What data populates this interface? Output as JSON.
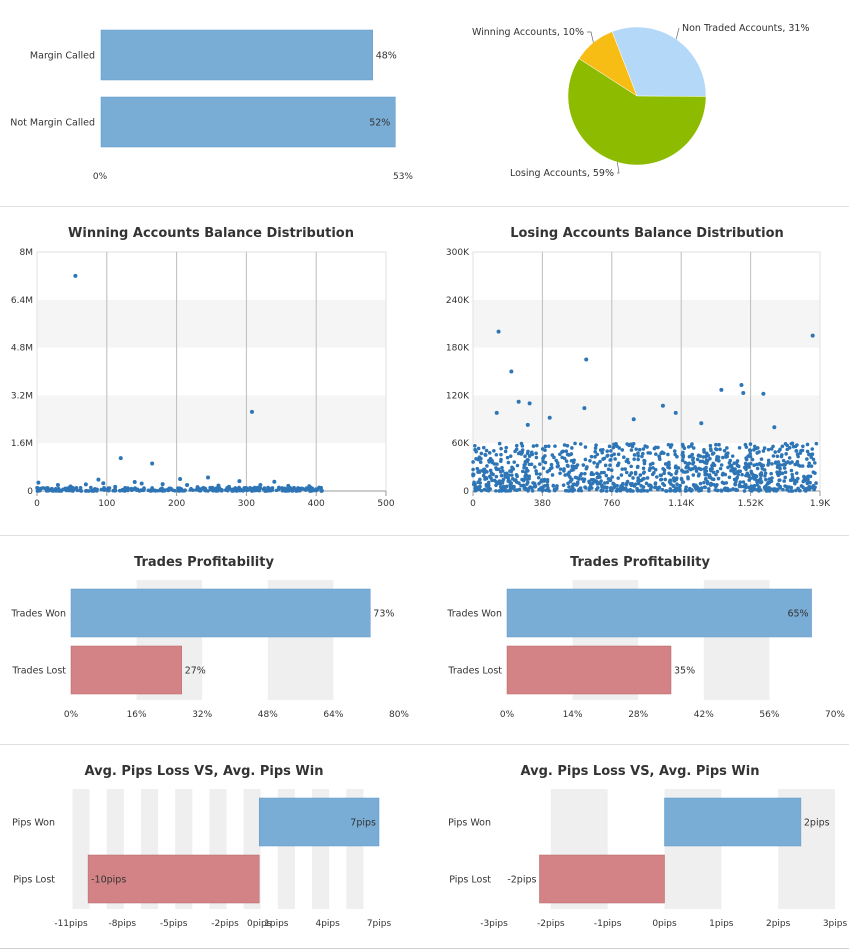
{
  "colors": {
    "blue": "#7aadd6",
    "blue_edge": "#5f97c9",
    "red": "#d38385",
    "red_edge": "#b66567",
    "dot": "#2e75b6",
    "pie_non_traded": "#b3d8f8",
    "pie_losing": "#8cbb00",
    "pie_winning": "#f7bd14",
    "band": "#efefef"
  },
  "chart_data": [
    {
      "type": "bar",
      "orientation": "horizontal",
      "categories": [
        "Margin Called",
        "Not Margin Called"
      ],
      "values": [
        48,
        52
      ],
      "value_labels": [
        "48%",
        "52%"
      ],
      "xlim": [
        0,
        53
      ],
      "tick_labels": [
        "0%",
        "53%"
      ]
    },
    {
      "type": "pie",
      "slices": [
        {
          "label": "Non Traded Accounts, 31%",
          "value": 31,
          "color": "#b3d8f8"
        },
        {
          "label": "Losing Accounts, 59%",
          "value": 59,
          "color": "#8cbb00"
        },
        {
          "label": "Winning Accounts, 10%",
          "value": 10,
          "color": "#f7bd14"
        }
      ]
    },
    {
      "type": "scatter",
      "title": "Winning Accounts Balance Distribution",
      "xlim": [
        0,
        500
      ],
      "ylim": [
        0,
        8000000
      ],
      "x_ticks": [
        "0",
        "100",
        "200",
        "300",
        "400",
        "500"
      ],
      "y_ticks": [
        "0",
        "1.6M",
        "3.2M",
        "4.8M",
        "6.4M",
        "8M"
      ],
      "points": [
        [
          55,
          7200000
        ],
        [
          308,
          2650000
        ],
        [
          120,
          1100000
        ],
        [
          165,
          920000
        ],
        [
          245,
          450000
        ],
        [
          205,
          400000
        ],
        [
          88,
          380000
        ],
        [
          140,
          300000
        ],
        [
          290,
          330000
        ],
        [
          340,
          310000
        ],
        [
          2,
          280000
        ],
        [
          30,
          200000
        ],
        [
          70,
          220000
        ],
        [
          95,
          260000
        ],
        [
          150,
          250000
        ],
        [
          180,
          230000
        ],
        [
          215,
          200000
        ],
        [
          260,
          180000
        ],
        [
          320,
          200000
        ],
        [
          360,
          170000
        ],
        [
          390,
          160000
        ],
        [
          48,
          150000
        ],
        [
          112,
          140000
        ],
        [
          230,
          130000
        ],
        [
          275,
          140000
        ],
        [
          15,
          100000
        ],
        [
          130,
          90000
        ],
        [
          300,
          90000
        ],
        [
          380,
          80000
        ],
        [
          400,
          60000
        ]
      ],
      "dense_band": {
        "x_range": [
          0,
          410
        ],
        "y_range": [
          0,
          120000
        ],
        "count": 320
      }
    },
    {
      "type": "scatter",
      "title": "Losing Accounts Balance Distribution",
      "xlim": [
        0,
        1900
      ],
      "ylim": [
        0,
        300000
      ],
      "x_ticks": [
        "0",
        "380",
        "760",
        "1.14K",
        "1.52K",
        "1.9K"
      ],
      "y_ticks": [
        "0",
        "60K",
        "120K",
        "180K",
        "240K",
        "300K"
      ],
      "points": [
        [
          140,
          200000
        ],
        [
          1860,
          195000
        ],
        [
          620,
          165000
        ],
        [
          210,
          150000
        ],
        [
          1470,
          133000
        ],
        [
          1360,
          127000
        ],
        [
          1590,
          122000
        ],
        [
          250,
          112000
        ],
        [
          1040,
          107000
        ],
        [
          310,
          110000
        ],
        [
          1480,
          123000
        ],
        [
          610,
          104000
        ],
        [
          1110,
          98000
        ],
        [
          130,
          98000
        ],
        [
          1650,
          80000
        ],
        [
          420,
          92000
        ],
        [
          880,
          90000
        ],
        [
          300,
          83000
        ],
        [
          1250,
          85000
        ]
      ],
      "dense_band": {
        "x_range": [
          0,
          1880
        ],
        "y_range": [
          0,
          60000
        ],
        "count": 1100
      }
    },
    {
      "type": "bar",
      "orientation": "horizontal",
      "title": "Trades Profitability",
      "categories": [
        "Trades Won",
        "Trades Lost"
      ],
      "values": [
        73,
        27
      ],
      "value_labels": [
        "73%",
        "27%"
      ],
      "xlim": [
        0,
        80
      ],
      "tick_labels": [
        "0%",
        "16%",
        "32%",
        "48%",
        "64%",
        "80%"
      ]
    },
    {
      "type": "bar",
      "orientation": "horizontal",
      "title": "Trades Profitability",
      "categories": [
        "Trades Won",
        "Trades Lost"
      ],
      "values": [
        65,
        35
      ],
      "value_labels": [
        "65%",
        "35%"
      ],
      "xlim": [
        0,
        70
      ],
      "tick_labels": [
        "0%",
        "14%",
        "28%",
        "42%",
        "56%",
        "70%"
      ]
    },
    {
      "type": "bar",
      "orientation": "horizontal",
      "title": "Avg. Pips Loss VS, Avg. Pips Win",
      "categories": [
        "Pips Won",
        "Pips Lost"
      ],
      "values": [
        7,
        -10
      ],
      "value_labels": [
        "7pips",
        "-10pips"
      ],
      "xlim": [
        -11,
        7
      ],
      "tick_labels": [
        "-11pips",
        "-8pips",
        "-5pips",
        "-2pips",
        "0pips",
        "1pips",
        "4pips",
        "7pips"
      ]
    },
    {
      "type": "bar",
      "orientation": "horizontal",
      "title": "Avg. Pips Loss VS, Avg. Pips Win",
      "categories": [
        "Pips Won",
        "Pips Lost"
      ],
      "values": [
        2.4,
        -2.2
      ],
      "value_labels": [
        "2pips",
        "-2pips"
      ],
      "xlim": [
        -3,
        3
      ],
      "tick_labels": [
        "-3pips",
        "-2pips",
        "-1pips",
        "0pips",
        "1pips",
        "2pips",
        "3pips"
      ]
    }
  ]
}
